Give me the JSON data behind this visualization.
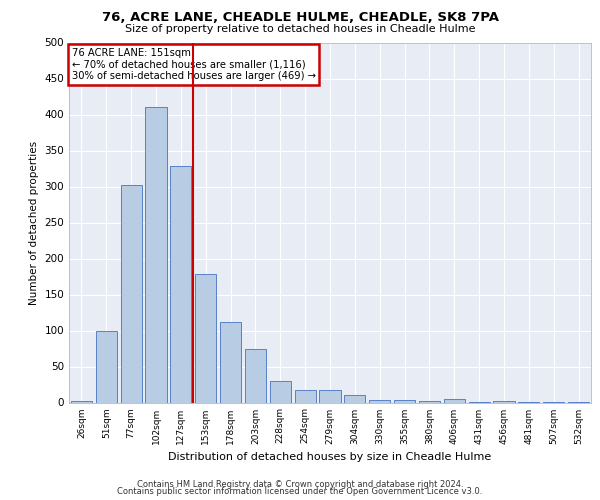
{
  "title1": "76, ACRE LANE, CHEADLE HULME, CHEADLE, SK8 7PA",
  "title2": "Size of property relative to detached houses in Cheadle Hulme",
  "xlabel": "Distribution of detached houses by size in Cheadle Hulme",
  "ylabel": "Number of detached properties",
  "bin_labels": [
    "26sqm",
    "51sqm",
    "77sqm",
    "102sqm",
    "127sqm",
    "153sqm",
    "178sqm",
    "203sqm",
    "228sqm",
    "254sqm",
    "279sqm",
    "304sqm",
    "330sqm",
    "355sqm",
    "380sqm",
    "406sqm",
    "431sqm",
    "456sqm",
    "481sqm",
    "507sqm",
    "532sqm"
  ],
  "bar_values": [
    2,
    99,
    302,
    410,
    329,
    178,
    112,
    75,
    30,
    17,
    17,
    10,
    4,
    3,
    2,
    5,
    1,
    2,
    1,
    1,
    1
  ],
  "bar_color": "#b8cce4",
  "bar_edge_color": "#4472c4",
  "vline_x_index": 5,
  "annotation_title": "76 ACRE LANE: 151sqm",
  "annotation_line1": "← 70% of detached houses are smaller (1,116)",
  "annotation_line2": "30% of semi-detached houses are larger (469) →",
  "annotation_box_color": "#cc0000",
  "vline_color": "#cc0000",
  "ylim": [
    0,
    500
  ],
  "yticks": [
    0,
    50,
    100,
    150,
    200,
    250,
    300,
    350,
    400,
    450,
    500
  ],
  "background_color": "#e8edf5",
  "footer1": "Contains HM Land Registry data © Crown copyright and database right 2024.",
  "footer2": "Contains public sector information licensed under the Open Government Licence v3.0."
}
